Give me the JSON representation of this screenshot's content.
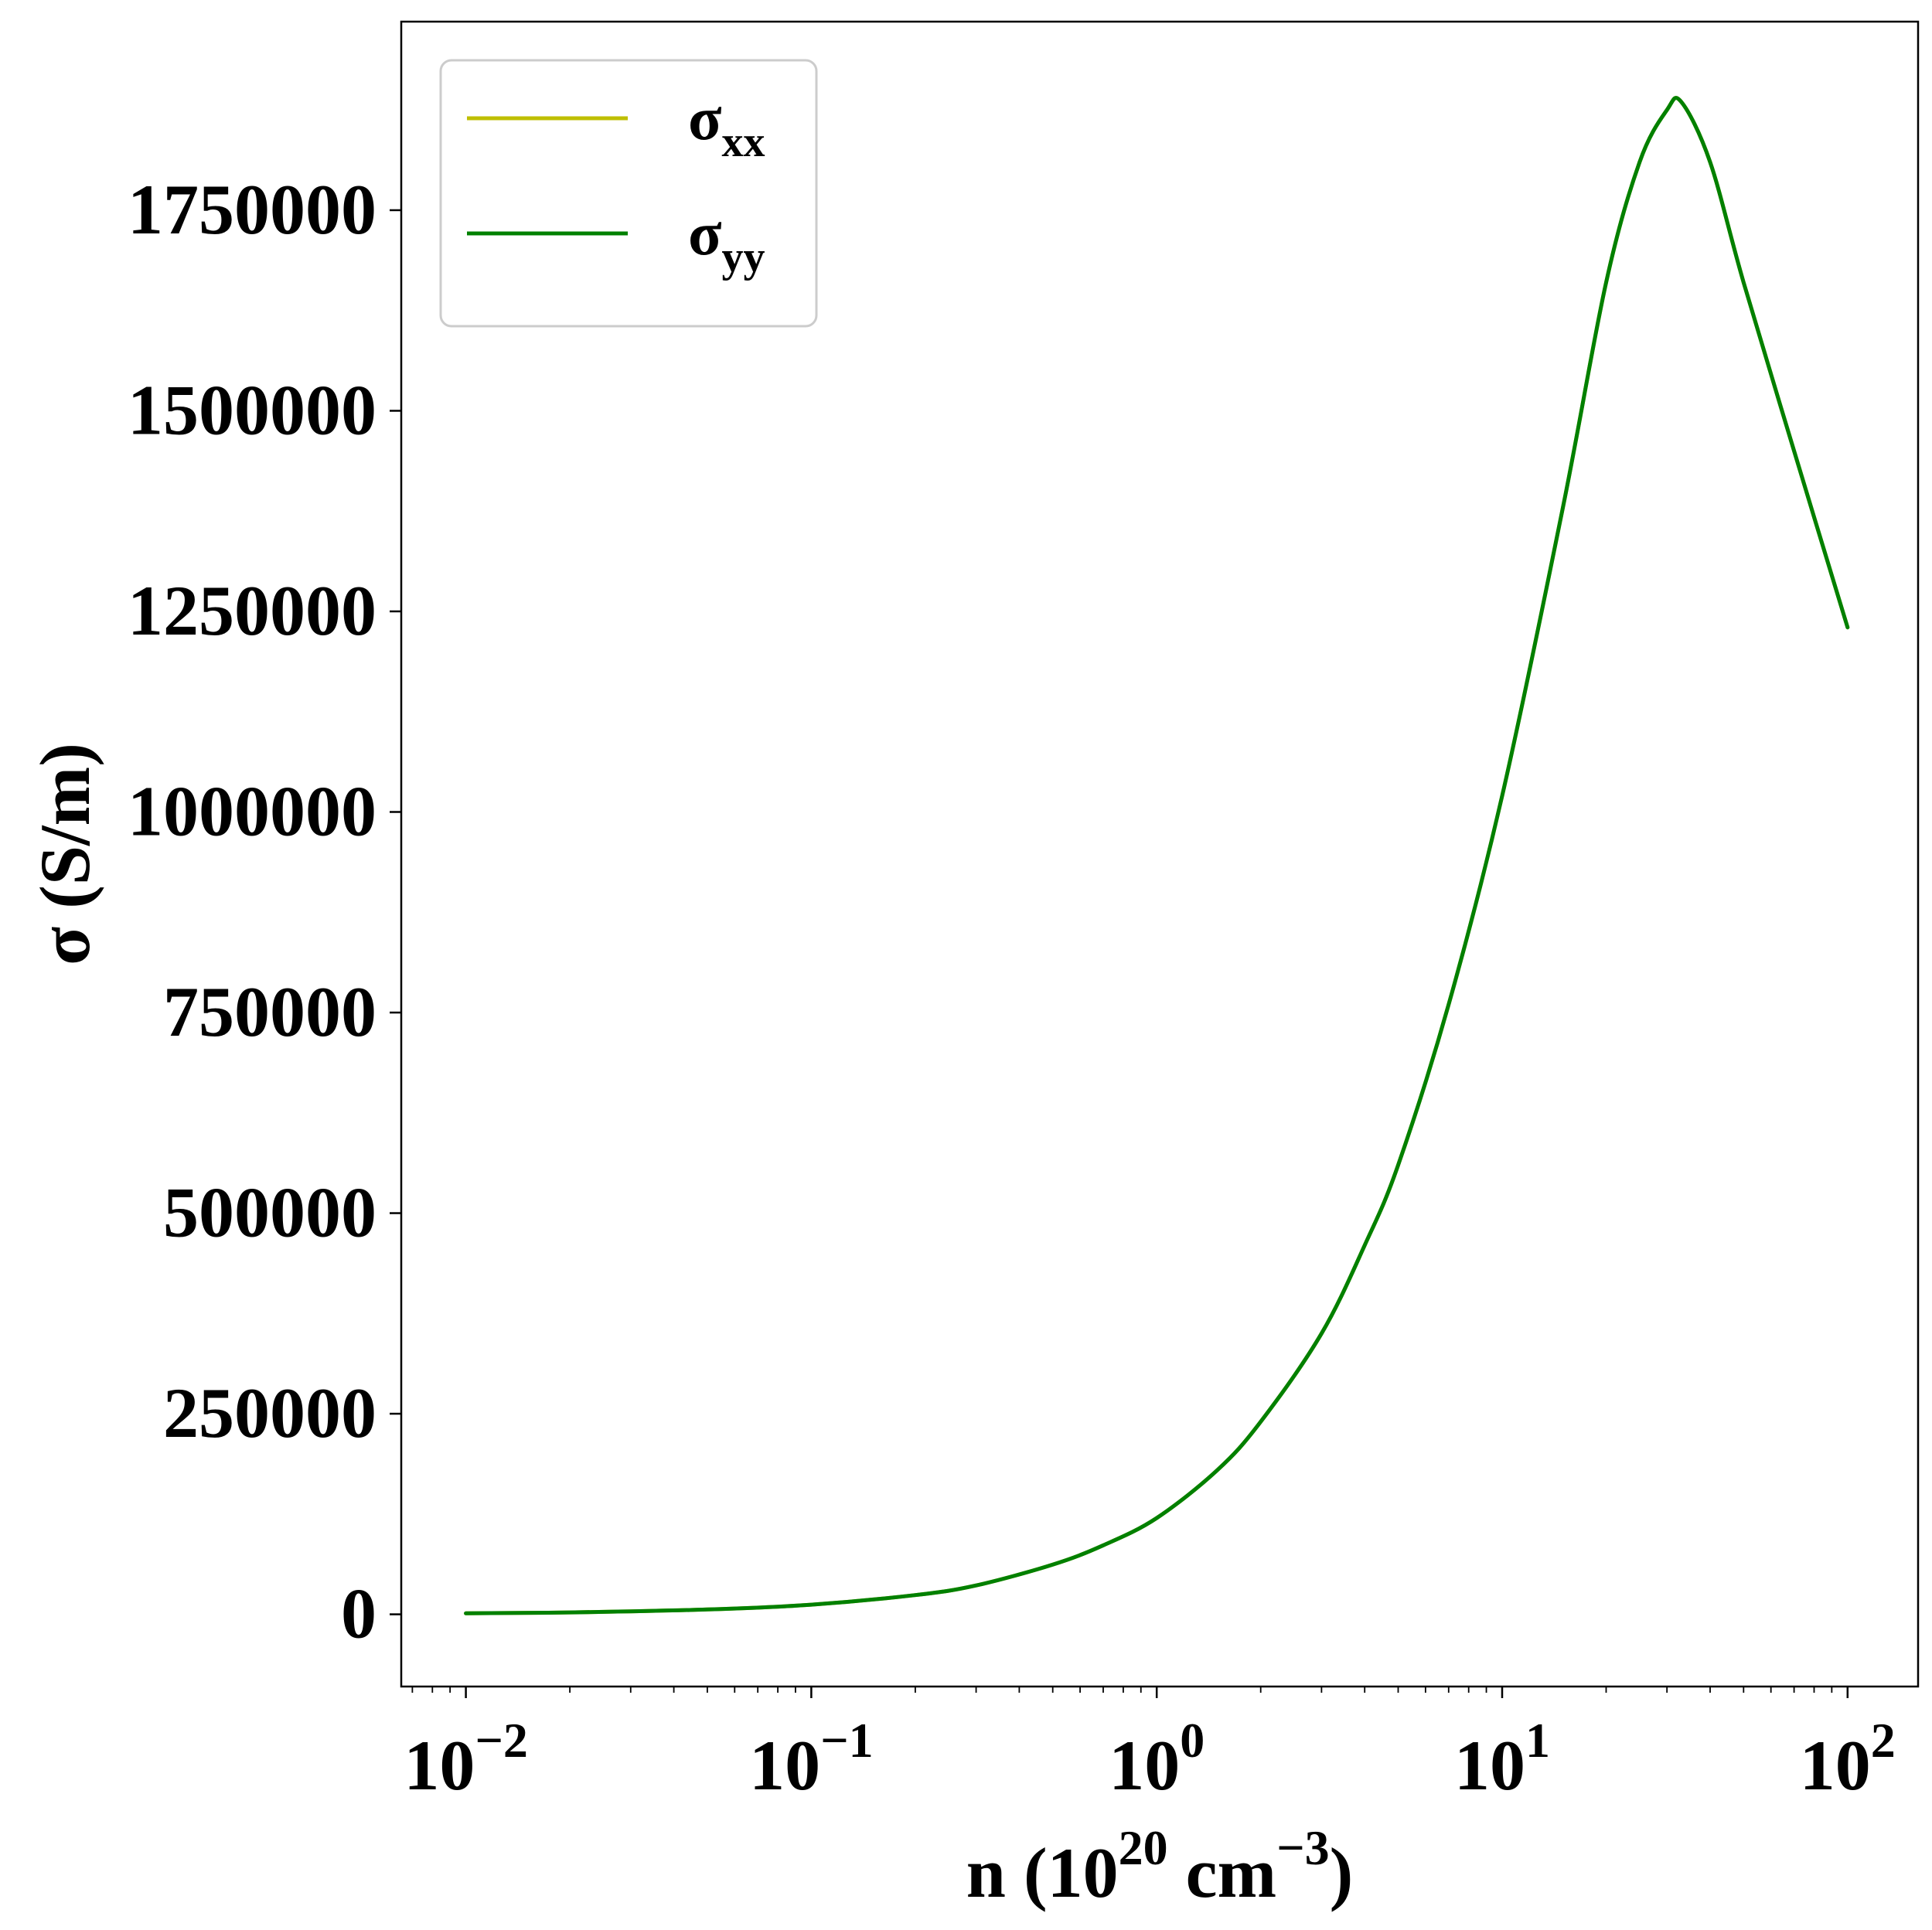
{
  "chart_data": {
    "type": "line",
    "title": "",
    "xlabel": {
      "base": "n (10",
      "sup1": "20",
      "mid": " cm",
      "sup2": "−3",
      "end": ")"
    },
    "ylabel": "σ (S/m)",
    "xscale": "log",
    "xlim": [
      0.0065,
      160
    ],
    "ylim": [
      -90000,
      1985000
    ],
    "grid": false,
    "legend_position": "top-left",
    "x_ticks": [
      {
        "value": 0.01,
        "base": "10",
        "exp": "−2"
      },
      {
        "value": 0.1,
        "base": "10",
        "exp": "−1"
      },
      {
        "value": 1,
        "base": "10",
        "exp": "0"
      },
      {
        "value": 10,
        "base": "10",
        "exp": "1"
      },
      {
        "value": 100,
        "base": "10",
        "exp": "2"
      }
    ],
    "y_ticks": [
      {
        "value": 0,
        "label": "0"
      },
      {
        "value": 250000,
        "label": "250000"
      },
      {
        "value": 500000,
        "label": "500000"
      },
      {
        "value": 750000,
        "label": "750000"
      },
      {
        "value": 1000000,
        "label": "1000000"
      },
      {
        "value": 1250000,
        "label": "1250000"
      },
      {
        "value": 1500000,
        "label": "1500000"
      },
      {
        "value": 1750000,
        "label": "1750000"
      }
    ],
    "series": [
      {
        "name": "σ",
        "name_sub": "xx",
        "color": "#bfbf00",
        "x": [
          0.01,
          0.02,
          0.05,
          0.1,
          0.2,
          0.3,
          0.5,
          0.7,
          1.0,
          1.5,
          2,
          3,
          4,
          5,
          7,
          10,
          15,
          20,
          25,
          30,
          33,
          40,
          50,
          70,
          100
        ],
        "y": [
          1200,
          2400,
          6000,
          12000,
          24000,
          36000,
          62000,
          86000,
          120000,
          180000,
          240000,
          350000,
          460000,
          560000,
          760000,
          1020000,
          1380000,
          1660000,
          1810000,
          1875000,
          1885000,
          1810000,
          1660000,
          1450000,
          1230000
        ]
      },
      {
        "name": "σ",
        "name_sub": "yy",
        "color": "#008000",
        "x": [
          0.01,
          0.02,
          0.05,
          0.1,
          0.2,
          0.3,
          0.5,
          0.7,
          1.0,
          1.5,
          2,
          3,
          4,
          5,
          7,
          10,
          15,
          20,
          25,
          30,
          33,
          40,
          50,
          70,
          100
        ],
        "y": [
          1200,
          2400,
          6000,
          12000,
          24000,
          36000,
          62000,
          86000,
          120000,
          180000,
          240000,
          350000,
          460000,
          560000,
          760000,
          1020000,
          1380000,
          1660000,
          1810000,
          1875000,
          1885000,
          1810000,
          1660000,
          1450000,
          1230000
        ]
      }
    ]
  }
}
